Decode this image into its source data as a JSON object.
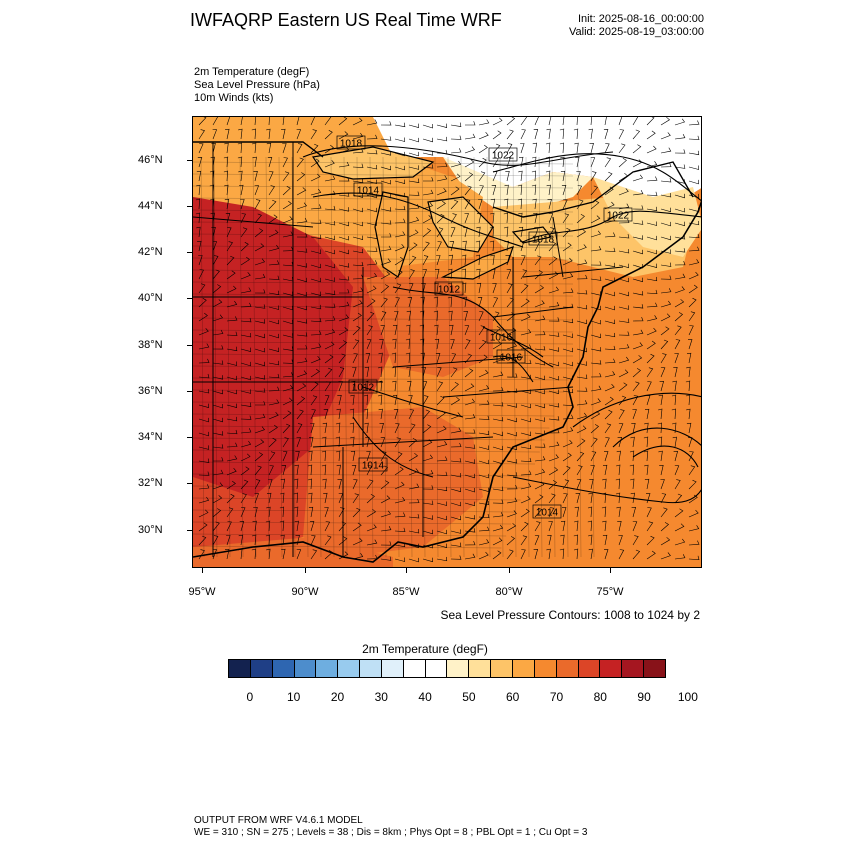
{
  "header": {
    "title": "IWFAQRP Eastern US Real Time WRF",
    "init": "Init: 2025-08-16_00:00:00",
    "valid": "Valid: 2025-08-19_03:00:00"
  },
  "fields": [
    "2m Temperature   (degF)",
    "Sea Level Pressure   (hPa)",
    "10m Winds   (kts)"
  ],
  "map": {
    "lat_labels": [
      "46°N",
      "44°N",
      "42°N",
      "40°N",
      "38°N",
      "36°N",
      "34°N",
      "32°N",
      "30°N"
    ],
    "lon_labels": [
      "95°W",
      "90°W",
      "85°W",
      "80°W",
      "75°W"
    ],
    "slp_contour_labels": [
      "1018",
      "1022",
      "1014",
      "1022",
      "1018",
      "1012",
      "1016",
      "1016",
      "1012",
      "1014",
      "1014"
    ],
    "contour_note": "Sea Level Pressure Contours: 1008 to 1024 by 2"
  },
  "colorbar": {
    "title": "2m Temperature  (degF)",
    "colors": [
      "#13224f",
      "#1f3f86",
      "#2e66b1",
      "#4d8dcc",
      "#6eaee0",
      "#98cbee",
      "#bfe0f5",
      "#e0f0fa",
      "#ffffff",
      "#ffffff",
      "#fff2c8",
      "#ffe09a",
      "#fdc468",
      "#fba844",
      "#f5892f",
      "#ea6a2b",
      "#dc4527",
      "#c52223",
      "#a51620",
      "#881219"
    ],
    "tick_labels": [
      "0",
      "10",
      "20",
      "30",
      "40",
      "50",
      "60",
      "70",
      "80",
      "90",
      "100"
    ]
  },
  "footer": {
    "line1": "OUTPUT FROM WRF V4.6.1 MODEL",
    "line2": "WE = 310 ; SN = 275 ; Levels = 38 ; Dis = 8km ; Phys Opt = 8 ; PBL Opt = 1 ; Cu Opt = 3"
  }
}
